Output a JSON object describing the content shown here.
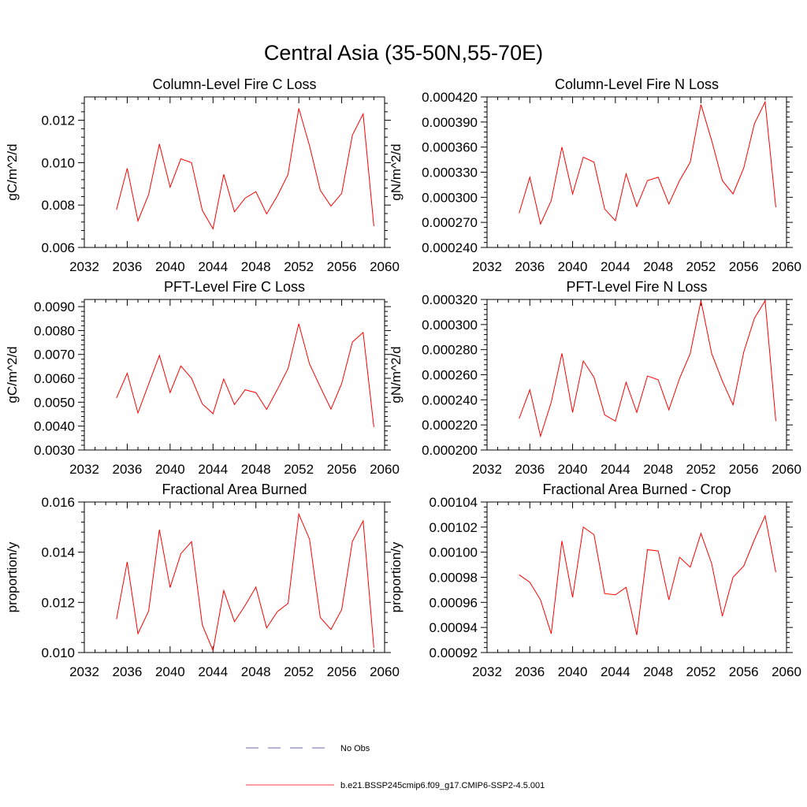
{
  "figure": {
    "title": "Central Asia (35-50N,55-70E)"
  },
  "legend": {
    "entries": [
      {
        "label": "No Obs",
        "color": "#3a3aa0",
        "style": "dashed"
      },
      {
        "label": "b.e21.BSSP245cmip6.f09_g17.CMIP6-SSP2-4.5.001",
        "color": "#ff0000",
        "style": "solid"
      }
    ]
  },
  "chart_data": [
    {
      "type": "line",
      "title": "Column-Level Fire C Loss",
      "ylabel": "gC/m^2/d",
      "xlim": [
        2032,
        2060
      ],
      "xticks": [
        2032,
        2036,
        2040,
        2044,
        2048,
        2052,
        2056,
        2060
      ],
      "ylim": [
        0.006,
        0.0131
      ],
      "yticks": [
        0.006,
        0.008,
        0.01,
        0.012
      ],
      "ytick_labels": [
        "0.006",
        "0.008",
        "0.010",
        "0.012"
      ],
      "x": [
        2035,
        2036,
        2037,
        2038,
        2039,
        2040,
        2041,
        2042,
        2043,
        2044,
        2045,
        2046,
        2047,
        2048,
        2049,
        2050,
        2051,
        2052,
        2053,
        2054,
        2055,
        2056,
        2057,
        2058,
        2059
      ],
      "series": [
        {
          "name": "b.e21.BSSP245cmip6.f09_g17.CMIP6-SSP2-4.5.001",
          "color": "#ff0000",
          "values": [
            0.00778,
            0.00973,
            0.00725,
            0.0085,
            0.01088,
            0.00884,
            0.01018,
            0.01,
            0.00775,
            0.00688,
            0.00945,
            0.00768,
            0.00833,
            0.00863,
            0.00758,
            0.00843,
            0.00945,
            0.01256,
            0.0108,
            0.0087,
            0.00795,
            0.00855,
            0.0113,
            0.0123,
            0.007
          ]
        }
      ]
    },
    {
      "type": "line",
      "title": "Column-Level Fire N Loss",
      "ylabel": "gN/m^2/d",
      "xlim": [
        2032,
        2060
      ],
      "xticks": [
        2032,
        2036,
        2040,
        2044,
        2048,
        2052,
        2056,
        2060
      ],
      "ylim": [
        0.00024,
        0.00042
      ],
      "yticks": [
        0.00024,
        0.00027,
        0.0003,
        0.00033,
        0.00036,
        0.00039,
        0.00042
      ],
      "ytick_labels": [
        "0.000240",
        "0.000270",
        "0.000300",
        "0.000330",
        "0.000360",
        "0.000390",
        "0.000420"
      ],
      "x": [
        2035,
        2036,
        2037,
        2038,
        2039,
        2040,
        2041,
        2042,
        2043,
        2044,
        2045,
        2046,
        2047,
        2048,
        2049,
        2050,
        2051,
        2052,
        2053,
        2054,
        2055,
        2056,
        2057,
        2058,
        2059
      ],
      "series": [
        {
          "name": "b.e21.BSSP245cmip6.f09_g17.CMIP6-SSP2-4.5.001",
          "color": "#ff0000",
          "values": [
            0.000281,
            0.000324,
            0.000268,
            0.000296,
            0.00036,
            0.000304,
            0.000348,
            0.000342,
            0.000286,
            0.000272,
            0.000328,
            0.000289,
            0.00032,
            0.000324,
            0.000292,
            0.00032,
            0.000342,
            0.000411,
            0.000368,
            0.00032,
            0.000304,
            0.000335,
            0.000388,
            0.000414,
            0.000288
          ]
        }
      ]
    },
    {
      "type": "line",
      "title": "PFT-Level Fire C Loss",
      "ylabel": "gC/m^2/d",
      "xlim": [
        2032,
        2060
      ],
      "xticks": [
        2032,
        2036,
        2040,
        2044,
        2048,
        2052,
        2056,
        2060
      ],
      "ylim": [
        0.003,
        0.0093
      ],
      "yticks": [
        0.003,
        0.004,
        0.005,
        0.006,
        0.007,
        0.008,
        0.009
      ],
      "ytick_labels": [
        "0.0030",
        "0.0040",
        "0.0050",
        "0.0060",
        "0.0070",
        "0.0080",
        "0.0090"
      ],
      "x": [
        2035,
        2036,
        2037,
        2038,
        2039,
        2040,
        2041,
        2042,
        2043,
        2044,
        2045,
        2046,
        2047,
        2048,
        2049,
        2050,
        2051,
        2052,
        2053,
        2054,
        2055,
        2056,
        2057,
        2058,
        2059
      ],
      "series": [
        {
          "name": "b.e21.BSSP245cmip6.f09_g17.CMIP6-SSP2-4.5.001",
          "color": "#ff0000",
          "values": [
            0.00518,
            0.00621,
            0.00455,
            0.00576,
            0.00696,
            0.0054,
            0.00652,
            0.006,
            0.00493,
            0.00452,
            0.00597,
            0.0049,
            0.00552,
            0.0054,
            0.0047,
            0.00553,
            0.00641,
            0.00828,
            0.0066,
            0.00564,
            0.00471,
            0.00578,
            0.00752,
            0.00792,
            0.00396
          ]
        }
      ]
    },
    {
      "type": "line",
      "title": "PFT-Level Fire N Loss",
      "ylabel": "gN/m^2/d",
      "xlim": [
        2032,
        2060
      ],
      "xticks": [
        2032,
        2036,
        2040,
        2044,
        2048,
        2052,
        2056,
        2060
      ],
      "ylim": [
        0.0002,
        0.00032
      ],
      "yticks": [
        0.0002,
        0.00022,
        0.00024,
        0.00026,
        0.00028,
        0.0003,
        0.00032
      ],
      "ytick_labels": [
        "0.000200",
        "0.000220",
        "0.000240",
        "0.000260",
        "0.000280",
        "0.000300",
        "0.000320"
      ],
      "x": [
        2035,
        2036,
        2037,
        2038,
        2039,
        2040,
        2041,
        2042,
        2043,
        2044,
        2045,
        2046,
        2047,
        2048,
        2049,
        2050,
        2051,
        2052,
        2053,
        2054,
        2055,
        2056,
        2057,
        2058,
        2059
      ],
      "series": [
        {
          "name": "b.e21.BSSP245cmip6.f09_g17.CMIP6-SSP2-4.5.001",
          "color": "#ff0000",
          "values": [
            0.000225,
            0.000248,
            0.000211,
            0.000238,
            0.000277,
            0.00023,
            0.000271,
            0.000258,
            0.000228,
            0.000223,
            0.000254,
            0.00023,
            0.000259,
            0.000256,
            0.000232,
            0.000257,
            0.000277,
            0.000319,
            0.000277,
            0.000255,
            0.000236,
            0.000278,
            0.000305,
            0.000319,
            0.000223
          ]
        }
      ]
    },
    {
      "type": "line",
      "title": "Fractional Area Burned",
      "ylabel": "proportion/y",
      "xlim": [
        2032,
        2060
      ],
      "xticks": [
        2032,
        2036,
        2040,
        2044,
        2048,
        2052,
        2056,
        2060
      ],
      "ylim": [
        0.01,
        0.016
      ],
      "yticks": [
        0.01,
        0.012,
        0.014,
        0.016
      ],
      "ytick_labels": [
        "0.010",
        "0.012",
        "0.014",
        "0.016"
      ],
      "x": [
        2035,
        2036,
        2037,
        2038,
        2039,
        2040,
        2041,
        2042,
        2043,
        2044,
        2045,
        2046,
        2047,
        2048,
        2049,
        2050,
        2051,
        2052,
        2053,
        2054,
        2055,
        2056,
        2057,
        2058,
        2059
      ],
      "series": [
        {
          "name": "b.e21.BSSP245cmip6.f09_g17.CMIP6-SSP2-4.5.001",
          "color": "#ff0000",
          "values": [
            0.01133,
            0.01361,
            0.01075,
            0.01166,
            0.0149,
            0.01259,
            0.01394,
            0.01442,
            0.0111,
            0.01008,
            0.01247,
            0.01123,
            0.01188,
            0.01261,
            0.01098,
            0.01163,
            0.01196,
            0.01552,
            0.01452,
            0.0114,
            0.01092,
            0.01171,
            0.01443,
            0.01525,
            0.01018
          ]
        }
      ]
    },
    {
      "type": "line",
      "title": "Fractional Area Burned - Crop",
      "ylabel": "proportion/y",
      "xlim": [
        2032,
        2060
      ],
      "xticks": [
        2032,
        2036,
        2040,
        2044,
        2048,
        2052,
        2056,
        2060
      ],
      "ylim": [
        0.00092,
        0.00104
      ],
      "yticks": [
        0.00092,
        0.00094,
        0.00096,
        0.00098,
        0.001,
        0.00102,
        0.00104
      ],
      "ytick_labels": [
        "0.00092",
        "0.00094",
        "0.00096",
        "0.00098",
        "0.00100",
        "0.00102",
        "0.00104"
      ],
      "x": [
        2035,
        2036,
        2037,
        2038,
        2039,
        2040,
        2041,
        2042,
        2043,
        2044,
        2045,
        2046,
        2047,
        2048,
        2049,
        2050,
        2051,
        2052,
        2053,
        2054,
        2055,
        2056,
        2057,
        2058,
        2059
      ],
      "series": [
        {
          "name": "b.e21.BSSP245cmip6.f09_g17.CMIP6-SSP2-4.5.001",
          "color": "#ff0000",
          "values": [
            0.000982,
            0.000976,
            0.000962,
            0.000935,
            0.001009,
            0.000964,
            0.00102,
            0.001014,
            0.000967,
            0.000966,
            0.000972,
            0.000934,
            0.001002,
            0.001001,
            0.000962,
            0.000996,
            0.000988,
            0.001015,
            0.000991,
            0.000949,
            0.00098,
            0.000989,
            0.00101,
            0.001029,
            0.000984
          ]
        }
      ]
    }
  ]
}
